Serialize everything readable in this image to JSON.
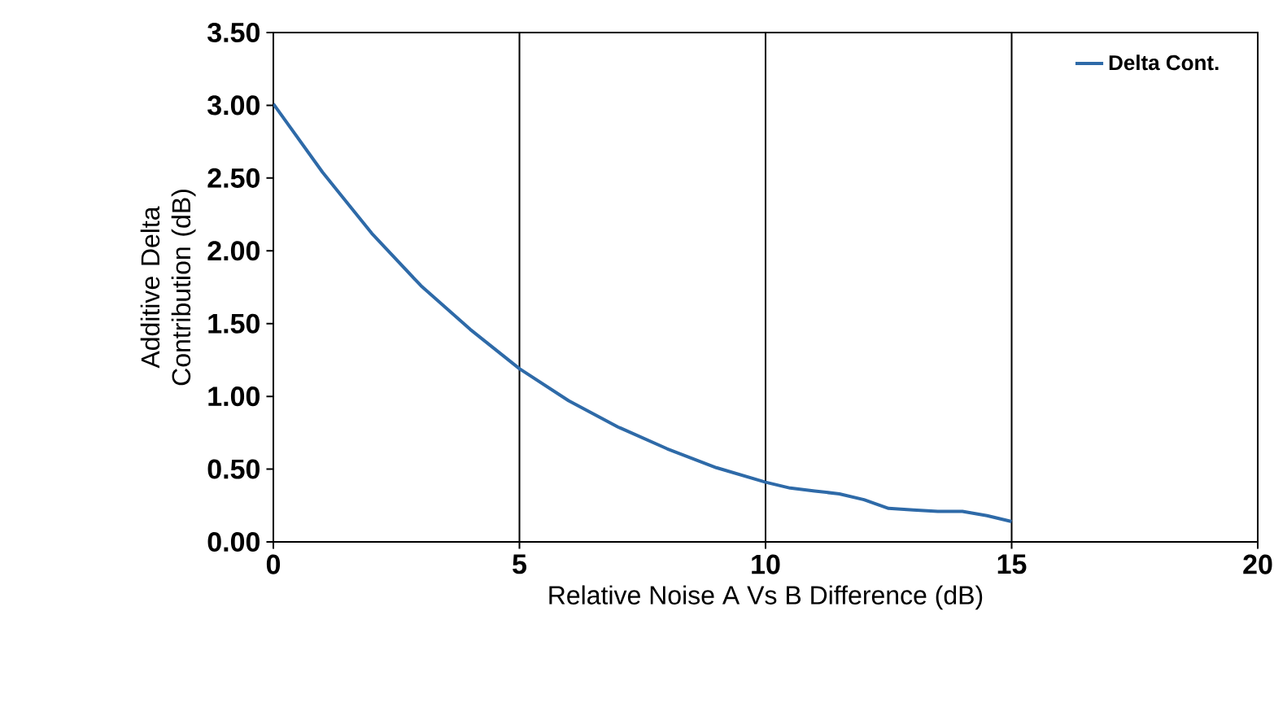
{
  "chart_data": {
    "type": "line",
    "xlabel": "Relative Noise A Vs B Difference (dB)",
    "ylabel": "Additive Delta Contribution (dB)",
    "x": [
      0,
      1,
      2,
      3,
      4,
      5,
      6,
      7,
      8,
      9,
      10,
      10.5,
      11,
      11.5,
      12,
      12.5,
      13,
      13.5,
      14,
      14.5,
      15
    ],
    "series": [
      {
        "name": "Delta Cont.",
        "color": "#2e6aa8",
        "values": [
          3.01,
          2.54,
          2.12,
          1.76,
          1.46,
          1.19,
          0.97,
          0.79,
          0.64,
          0.51,
          0.41,
          0.37,
          0.35,
          0.33,
          0.29,
          0.23,
          0.22,
          0.21,
          0.21,
          0.18,
          0.14
        ]
      }
    ],
    "xlim": [
      0,
      20
    ],
    "ylim": [
      0,
      3.5
    ],
    "xticks": [
      0,
      5,
      10,
      15,
      20
    ],
    "yticks": [
      {
        "value": 0,
        "label": "0.00"
      },
      {
        "value": 0.5,
        "label": "0.50"
      },
      {
        "value": 1,
        "label": "1.00"
      },
      {
        "value": 1.5,
        "label": "1.50"
      },
      {
        "value": 2,
        "label": "2.00"
      },
      {
        "value": 2.5,
        "label": "2.50"
      },
      {
        "value": 3,
        "label": "3.00"
      },
      {
        "value": 3.5,
        "label": "3.50"
      }
    ],
    "grid": "x",
    "legend": "top right",
    "marker": "none",
    "line_style": "solid"
  }
}
